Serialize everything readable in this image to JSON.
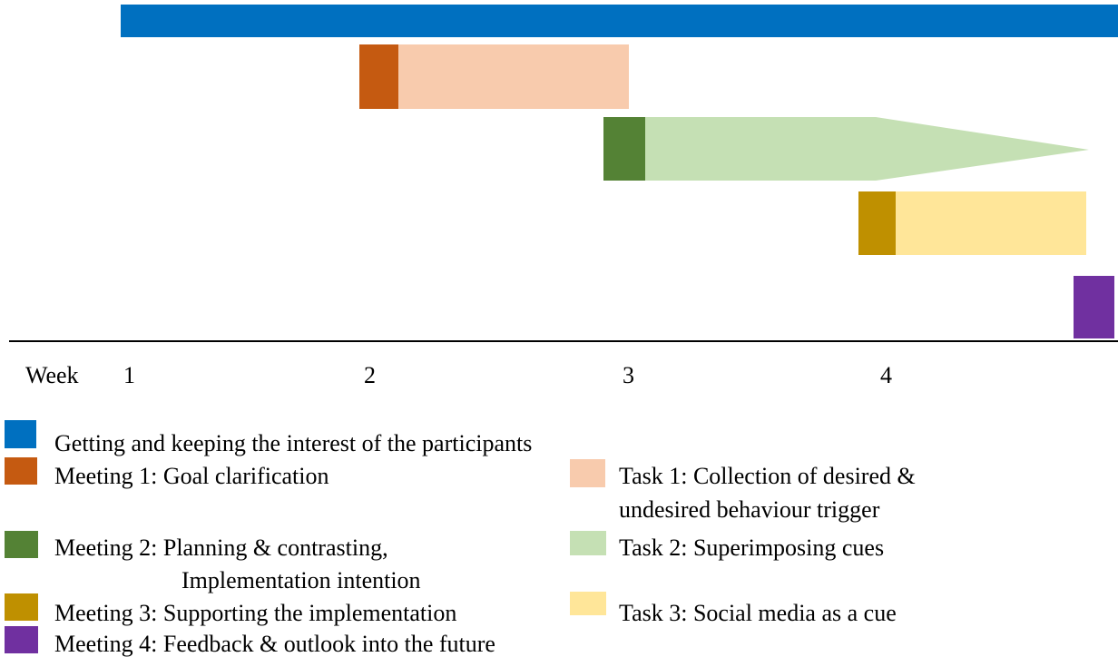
{
  "axis": {
    "label": "Week",
    "weeks": [
      "1",
      "2",
      "3",
      "4"
    ]
  },
  "legend": [
    {
      "lines": [
        "Getting and keeping the interest of the participants"
      ]
    },
    {
      "lines": [
        "Meeting 1: Goal clarification"
      ]
    },
    {
      "lines": [
        "Task 1: Collection of desired &",
        "undesired behaviour trigger"
      ]
    },
    {
      "lines": [
        "Meeting 2: Planning & contrasting,",
        "Implementation intention"
      ]
    },
    {
      "lines": [
        "Task 2: Superimposing cues"
      ]
    },
    {
      "lines": [
        "Meeting 3: Supporting the implementation"
      ]
    },
    {
      "lines": [
        "Task 3: Social media as a cue"
      ]
    },
    {
      "lines": [
        "Meeting 4: Feedback & outlook into the future"
      ]
    }
  ]
}
